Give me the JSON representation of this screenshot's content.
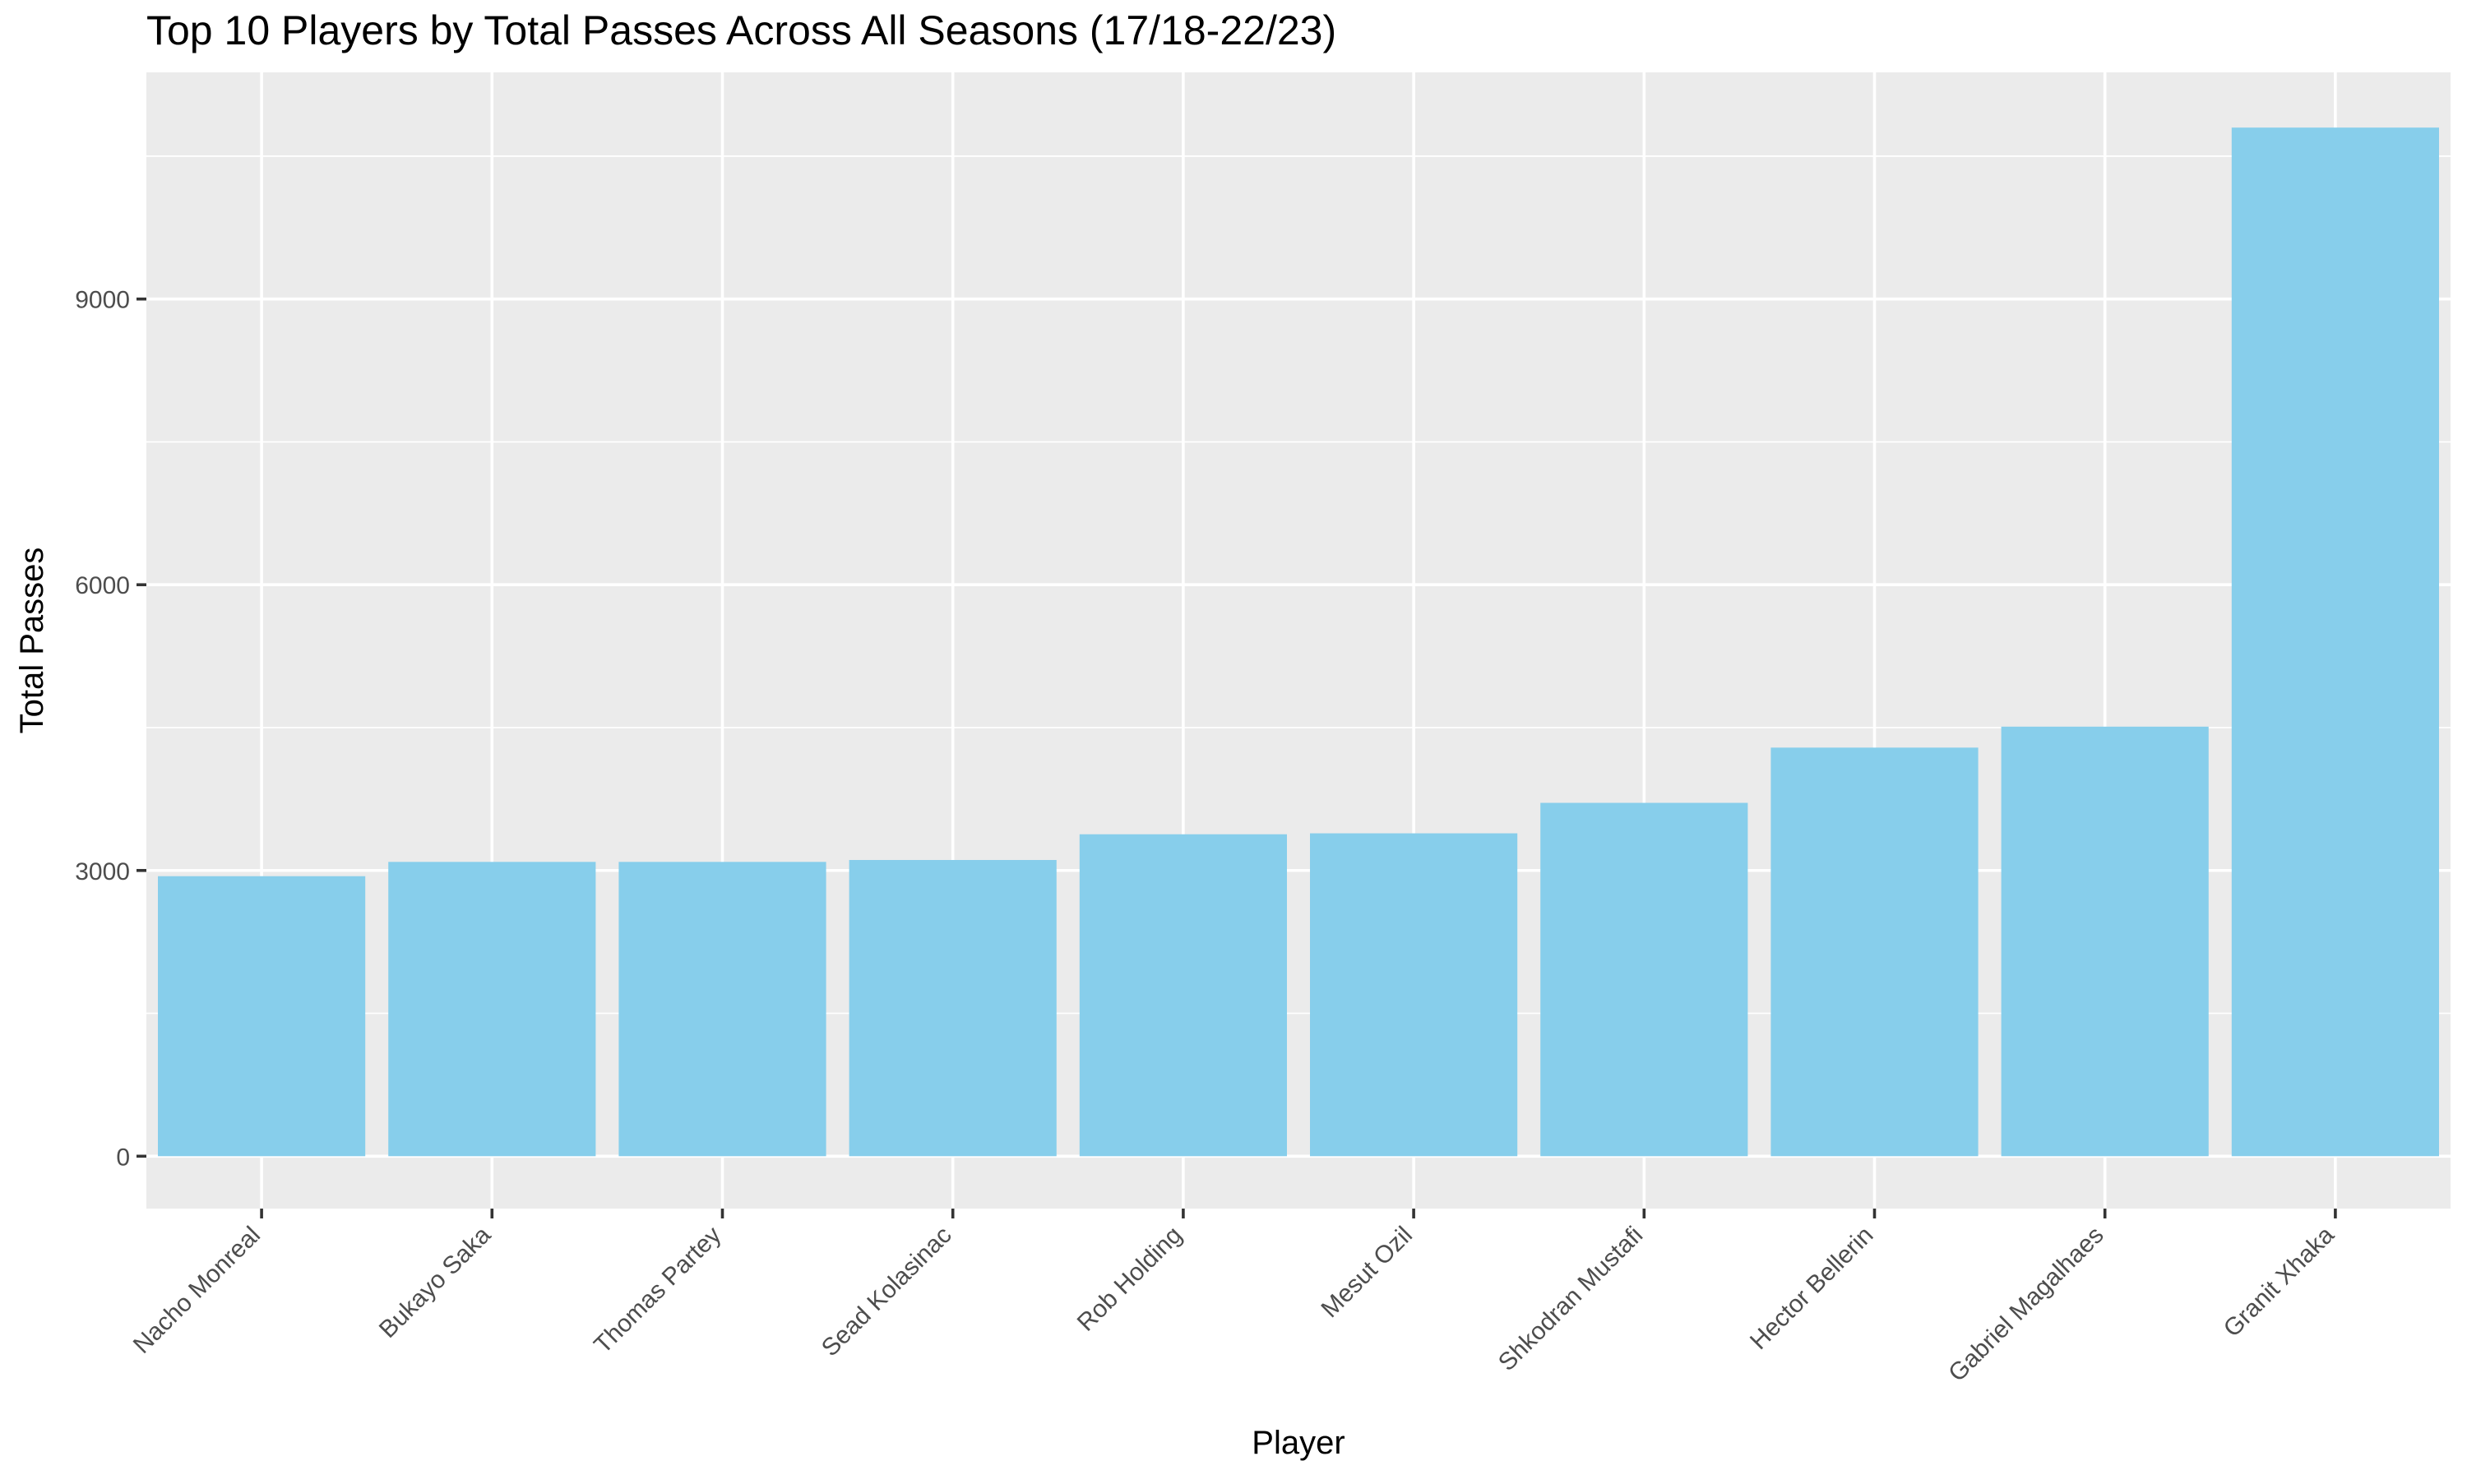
{
  "chart_data": {
    "type": "bar",
    "title": "Top 10 Players by Total Passes Across All Seasons (17/18-22/23)",
    "xlabel": "Player",
    "ylabel": "Total Passes",
    "categories": [
      "Nacho Monreal",
      "Bukayo Saka",
      "Thomas Partey",
      "Sead Kolasinac",
      "Rob Holding",
      "Mesut Ozil",
      "Shkodran Mustafi",
      "Hector Bellerin",
      "Gabriel Magalhaes",
      "Granit Xhaka"
    ],
    "values": [
      2940,
      3090,
      3090,
      3110,
      3380,
      3390,
      3710,
      4290,
      4510,
      10800
    ],
    "ylim": [
      -550,
      11380
    ],
    "yticks": [
      0,
      3000,
      6000,
      9000
    ],
    "ytick_labels": [
      "0",
      "3000",
      "6000",
      "9000"
    ],
    "grid": true,
    "legend": "none",
    "colors": {
      "bar": "#87CEEB",
      "panel": "#EBEBEB",
      "grid": "#FFFFFF",
      "tick_text": "#4D4D4D",
      "axis_title": "#000000"
    }
  }
}
